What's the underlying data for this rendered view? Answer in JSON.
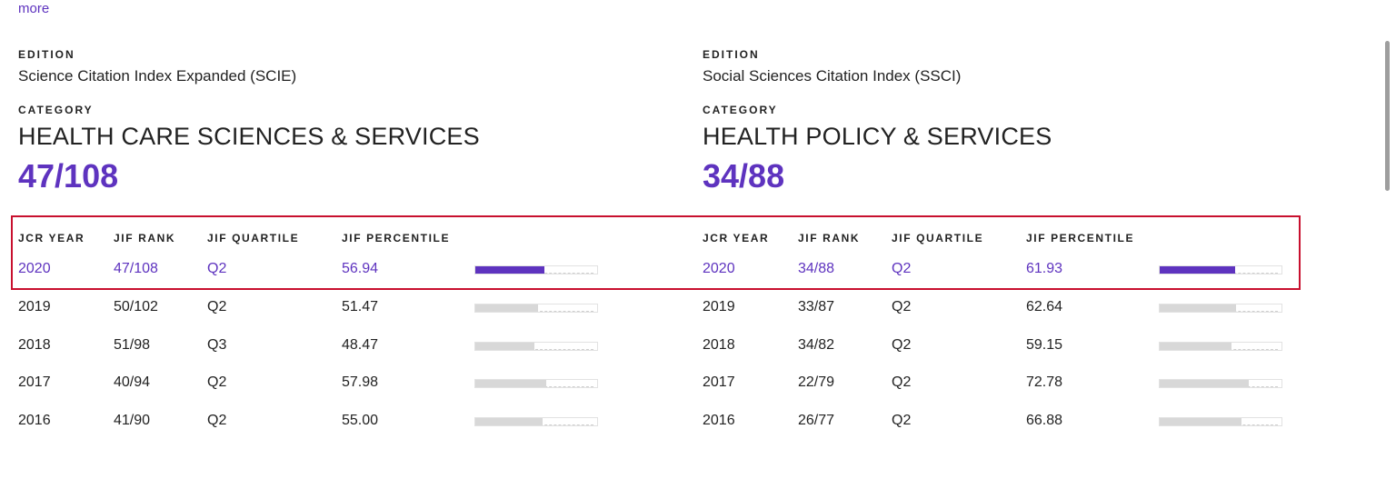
{
  "more_link": "more",
  "table_headers": {
    "year": "JCR YEAR",
    "rank": "JIF RANK",
    "quartile": "JIF QUARTILE",
    "percentile": "JIF PERCENTILE"
  },
  "panels": [
    {
      "edition_label": "EDITION",
      "edition": "Science Citation Index Expanded (SCIE)",
      "category_label": "CATEGORY",
      "category": "HEALTH CARE SCIENCES & SERVICES",
      "rank": "47/108",
      "rows": [
        {
          "year": "2020",
          "rank": "47/108",
          "quartile": "Q2",
          "percentile": "56.94",
          "percentile_value": 56.94
        },
        {
          "year": "2019",
          "rank": "50/102",
          "quartile": "Q2",
          "percentile": "51.47",
          "percentile_value": 51.47
        },
        {
          "year": "2018",
          "rank": "51/98",
          "quartile": "Q3",
          "percentile": "48.47",
          "percentile_value": 48.47
        },
        {
          "year": "2017",
          "rank": "40/94",
          "quartile": "Q2",
          "percentile": "57.98",
          "percentile_value": 57.98
        },
        {
          "year": "2016",
          "rank": "41/90",
          "quartile": "Q2",
          "percentile": "55.00",
          "percentile_value": 55.0
        }
      ]
    },
    {
      "edition_label": "EDITION",
      "edition": "Social Sciences Citation Index (SSCI)",
      "category_label": "CATEGORY",
      "category": "HEALTH POLICY & SERVICES",
      "rank": "34/88",
      "rows": [
        {
          "year": "2020",
          "rank": "34/88",
          "quartile": "Q2",
          "percentile": "61.93",
          "percentile_value": 61.93
        },
        {
          "year": "2019",
          "rank": "33/87",
          "quartile": "Q2",
          "percentile": "62.64",
          "percentile_value": 62.64
        },
        {
          "year": "2018",
          "rank": "34/82",
          "quartile": "Q2",
          "percentile": "59.15",
          "percentile_value": 59.15
        },
        {
          "year": "2017",
          "rank": "22/79",
          "quartile": "Q2",
          "percentile": "72.78",
          "percentile_value": 72.78
        },
        {
          "year": "2016",
          "rank": "26/77",
          "quartile": "Q2",
          "percentile": "66.88",
          "percentile_value": 66.88
        }
      ]
    }
  ],
  "colors": {
    "accent": "#5e33bf",
    "highlight_border": "#c8102e",
    "bar_track": "#d8d8d8"
  }
}
